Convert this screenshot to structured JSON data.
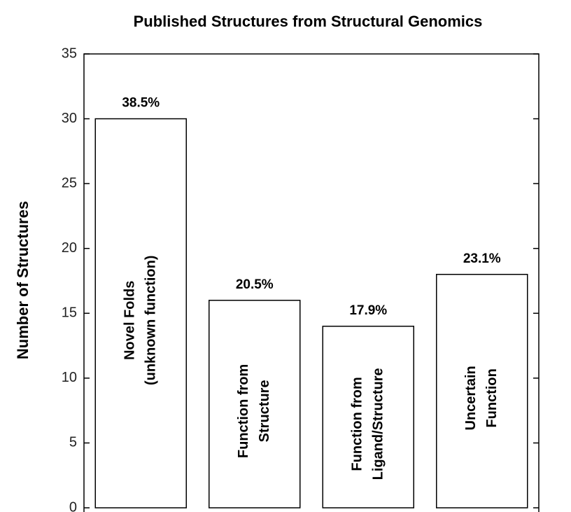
{
  "chart_data": {
    "type": "bar",
    "title": "Published Structures from Structural Genomics",
    "y_label": "Number of Structures",
    "categories": [
      [
        "Novel Folds",
        "(unknown function)"
      ],
      [
        "Function from",
        "Structure"
      ],
      [
        "Function from",
        "Ligand/Structure"
      ],
      [
        "Uncertain",
        "Function"
      ]
    ],
    "values": [
      30,
      16,
      14,
      18
    ],
    "annotations": [
      "38.5%",
      "20.5%",
      "17.9%",
      "23.1%"
    ],
    "color": "#ffffff",
    "ylim": [
      0,
      35
    ],
    "yticks": [
      0,
      5,
      10,
      15,
      20,
      25,
      30,
      35
    ],
    "grid": false
  }
}
